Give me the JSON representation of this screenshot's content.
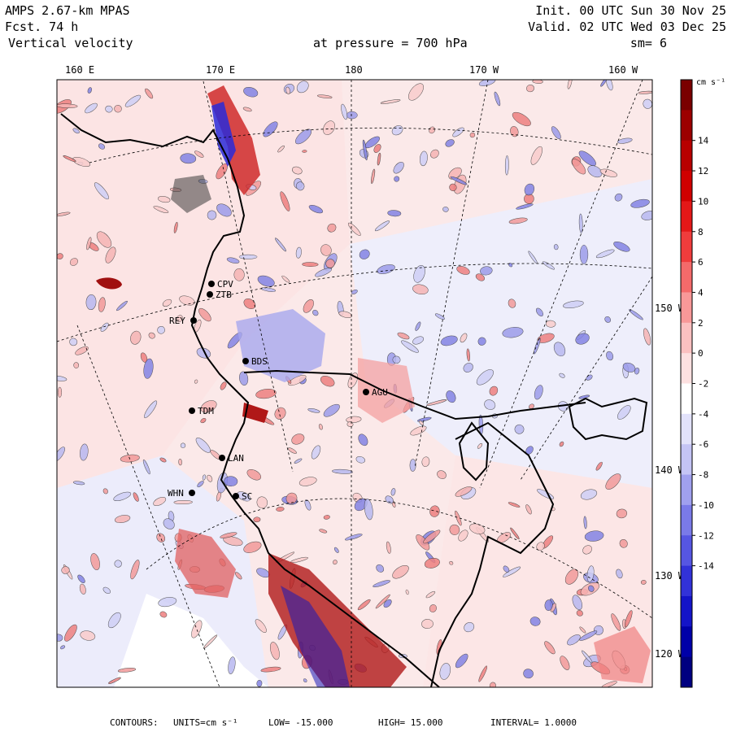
{
  "header": {
    "model": "AMPS 2.67-km MPAS",
    "forecast": "Fcst.   74 h",
    "field": "Vertical velocity",
    "init": "Init. 00 UTC Sun 30 Nov 25",
    "valid": "Valid. 02 UTC Wed 03 Dec 25",
    "pressure_label": "at pressure =  700 hPa",
    "smoothing": "sm= 6"
  },
  "top_lon_labels": [
    "160 E",
    "170 E",
    "180",
    "170 W",
    "160 W"
  ],
  "right_lat_labels": [
    "150 W",
    "140 W",
    "130 W",
    "120 W"
  ],
  "stations": [
    "CPV",
    "ZTB",
    "REY",
    "BDS",
    "TDM",
    "LAN",
    "WHN",
    "SC",
    "AGU"
  ],
  "colorbar": {
    "units_label": "cm s⁻¹",
    "tick_labels": [
      "14",
      "12",
      "10",
      "8",
      "6",
      "4",
      "2",
      "0",
      "-2",
      "-4",
      "-6",
      "-8",
      "-10",
      "-12",
      "-14"
    ],
    "colors": [
      "#7a0000",
      "#9c0000",
      "#b80000",
      "#d00000",
      "#e41818",
      "#f03c3c",
      "#f46a6a",
      "#f89898",
      "#fbc0c0",
      "#fde0e0",
      "#ffffff",
      "#e2e2fb",
      "#c4c4f5",
      "#a0a0ee",
      "#7a7ae8",
      "#5656e2",
      "#3232d8",
      "#1414c8",
      "#0000a8",
      "#000080"
    ]
  },
  "footer": {
    "contours": "CONTOURS:",
    "units": "UNITS=cm s⁻¹",
    "low": "LOW= -15.000",
    "high": "HIGH= 15.000",
    "interval": "INTERVAL= 1.0000"
  }
}
